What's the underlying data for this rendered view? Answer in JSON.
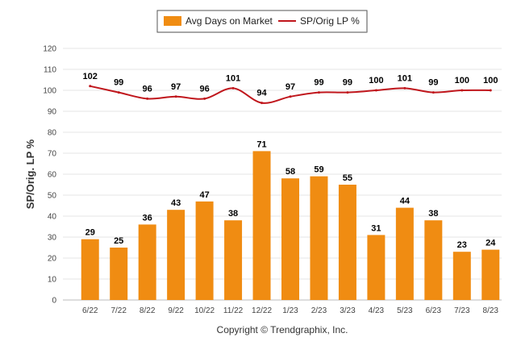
{
  "chart_data": {
    "type": "bar",
    "categories": [
      "6/22",
      "7/22",
      "8/22",
      "9/22",
      "10/22",
      "11/22",
      "12/22",
      "1/23",
      "2/23",
      "3/23",
      "4/23",
      "5/23",
      "6/23",
      "7/23",
      "8/23"
    ],
    "series": [
      {
        "name": "Avg Days on Market",
        "type": "bar",
        "color": "#F08C12",
        "values": [
          29,
          25,
          36,
          43,
          47,
          38,
          71,
          58,
          59,
          55,
          31,
          44,
          38,
          23,
          24
        ]
      },
      {
        "name": "SP/Orig LP %",
        "type": "line",
        "color": "#C0161C",
        "values": [
          102,
          99,
          96,
          97,
          96,
          101,
          94,
          97,
          99,
          99,
          100,
          101,
          99,
          100,
          100
        ]
      }
    ],
    "ylabel": "SP/Orig. LP %",
    "ylim": [
      0,
      120
    ],
    "yticks": [
      0,
      10,
      20,
      30,
      40,
      50,
      60,
      70,
      80,
      90,
      100,
      110,
      120
    ],
    "grid": true,
    "legend_position": "top-center"
  },
  "footer": {
    "copyright": "Copyright © Trendgraphix, Inc."
  }
}
